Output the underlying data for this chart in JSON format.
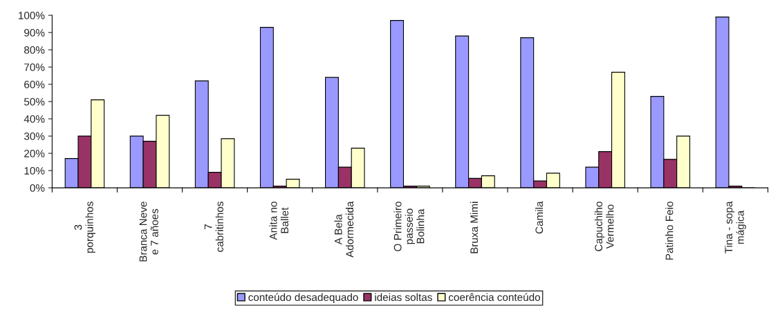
{
  "chart_data": {
    "type": "bar",
    "categories": [
      "3\nporquinhos",
      "Branca Neve\ne 7 añoes",
      "7\ncabritinhos",
      "Anita no\nBallet",
      "A Bela\nAdormecida",
      "O Primeiro\npasseio\nBolinha",
      "Bruxa Mimi",
      "Camila",
      "Capuchiho\nVermelho",
      "Patinho Feio",
      "Tina - sopa\nmágica"
    ],
    "series": [
      {
        "name": "conteúdo desadequado",
        "color": "#9999ff",
        "values": [
          17,
          30,
          62,
          93,
          64,
          97,
          88,
          87,
          12,
          53,
          99
        ]
      },
      {
        "name": "ideias soltas",
        "color": "#993366",
        "values": [
          30,
          27,
          9,
          1,
          12,
          1,
          5.5,
          4,
          21,
          16.5,
          1
        ]
      },
      {
        "name": "coerência conteúdo",
        "color": "#ffffcc",
        "values": [
          51,
          42,
          28.5,
          5,
          23,
          1,
          7,
          8.5,
          67,
          30,
          0
        ]
      }
    ],
    "ylim": [
      0,
      100
    ],
    "yticks": [
      {
        "value": 0,
        "label": "0%"
      },
      {
        "value": 10,
        "label": "10%"
      },
      {
        "value": 20,
        "label": "20%"
      },
      {
        "value": 30,
        "label": "30%"
      },
      {
        "value": 40,
        "label": "40%"
      },
      {
        "value": 50,
        "label": "50%"
      },
      {
        "value": 60,
        "label": "60%"
      },
      {
        "value": 70,
        "label": "70%"
      },
      {
        "value": 80,
        "label": "80%"
      },
      {
        "value": 90,
        "label": "90%"
      },
      {
        "value": 100,
        "label": "100%"
      }
    ],
    "grid": false,
    "legend": "bottom"
  }
}
